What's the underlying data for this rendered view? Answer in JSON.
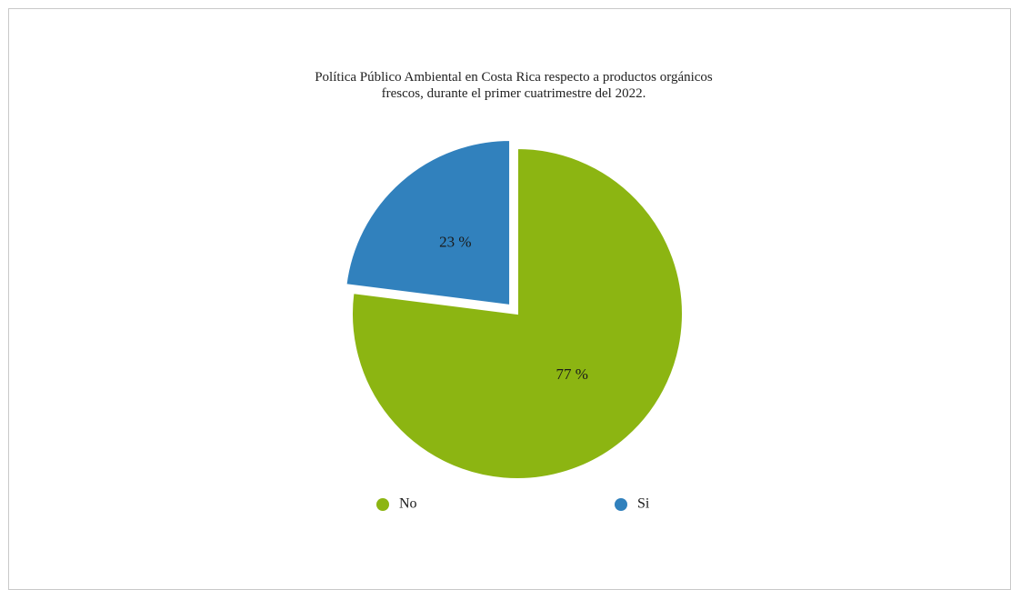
{
  "chart_data": {
    "type": "pie",
    "title": "Política Público Ambiental en Costa Rica respecto a productos orgánicos frescos, durante el primer cuatrimestre del 2022.",
    "categories": [
      "No",
      "Si"
    ],
    "values": [
      77,
      23
    ],
    "data_labels": [
      "77 %",
      "23 %"
    ],
    "colors": [
      "#8cb512",
      "#3181bd"
    ],
    "exploded": [
      false,
      true
    ],
    "legend_position": "bottom"
  }
}
